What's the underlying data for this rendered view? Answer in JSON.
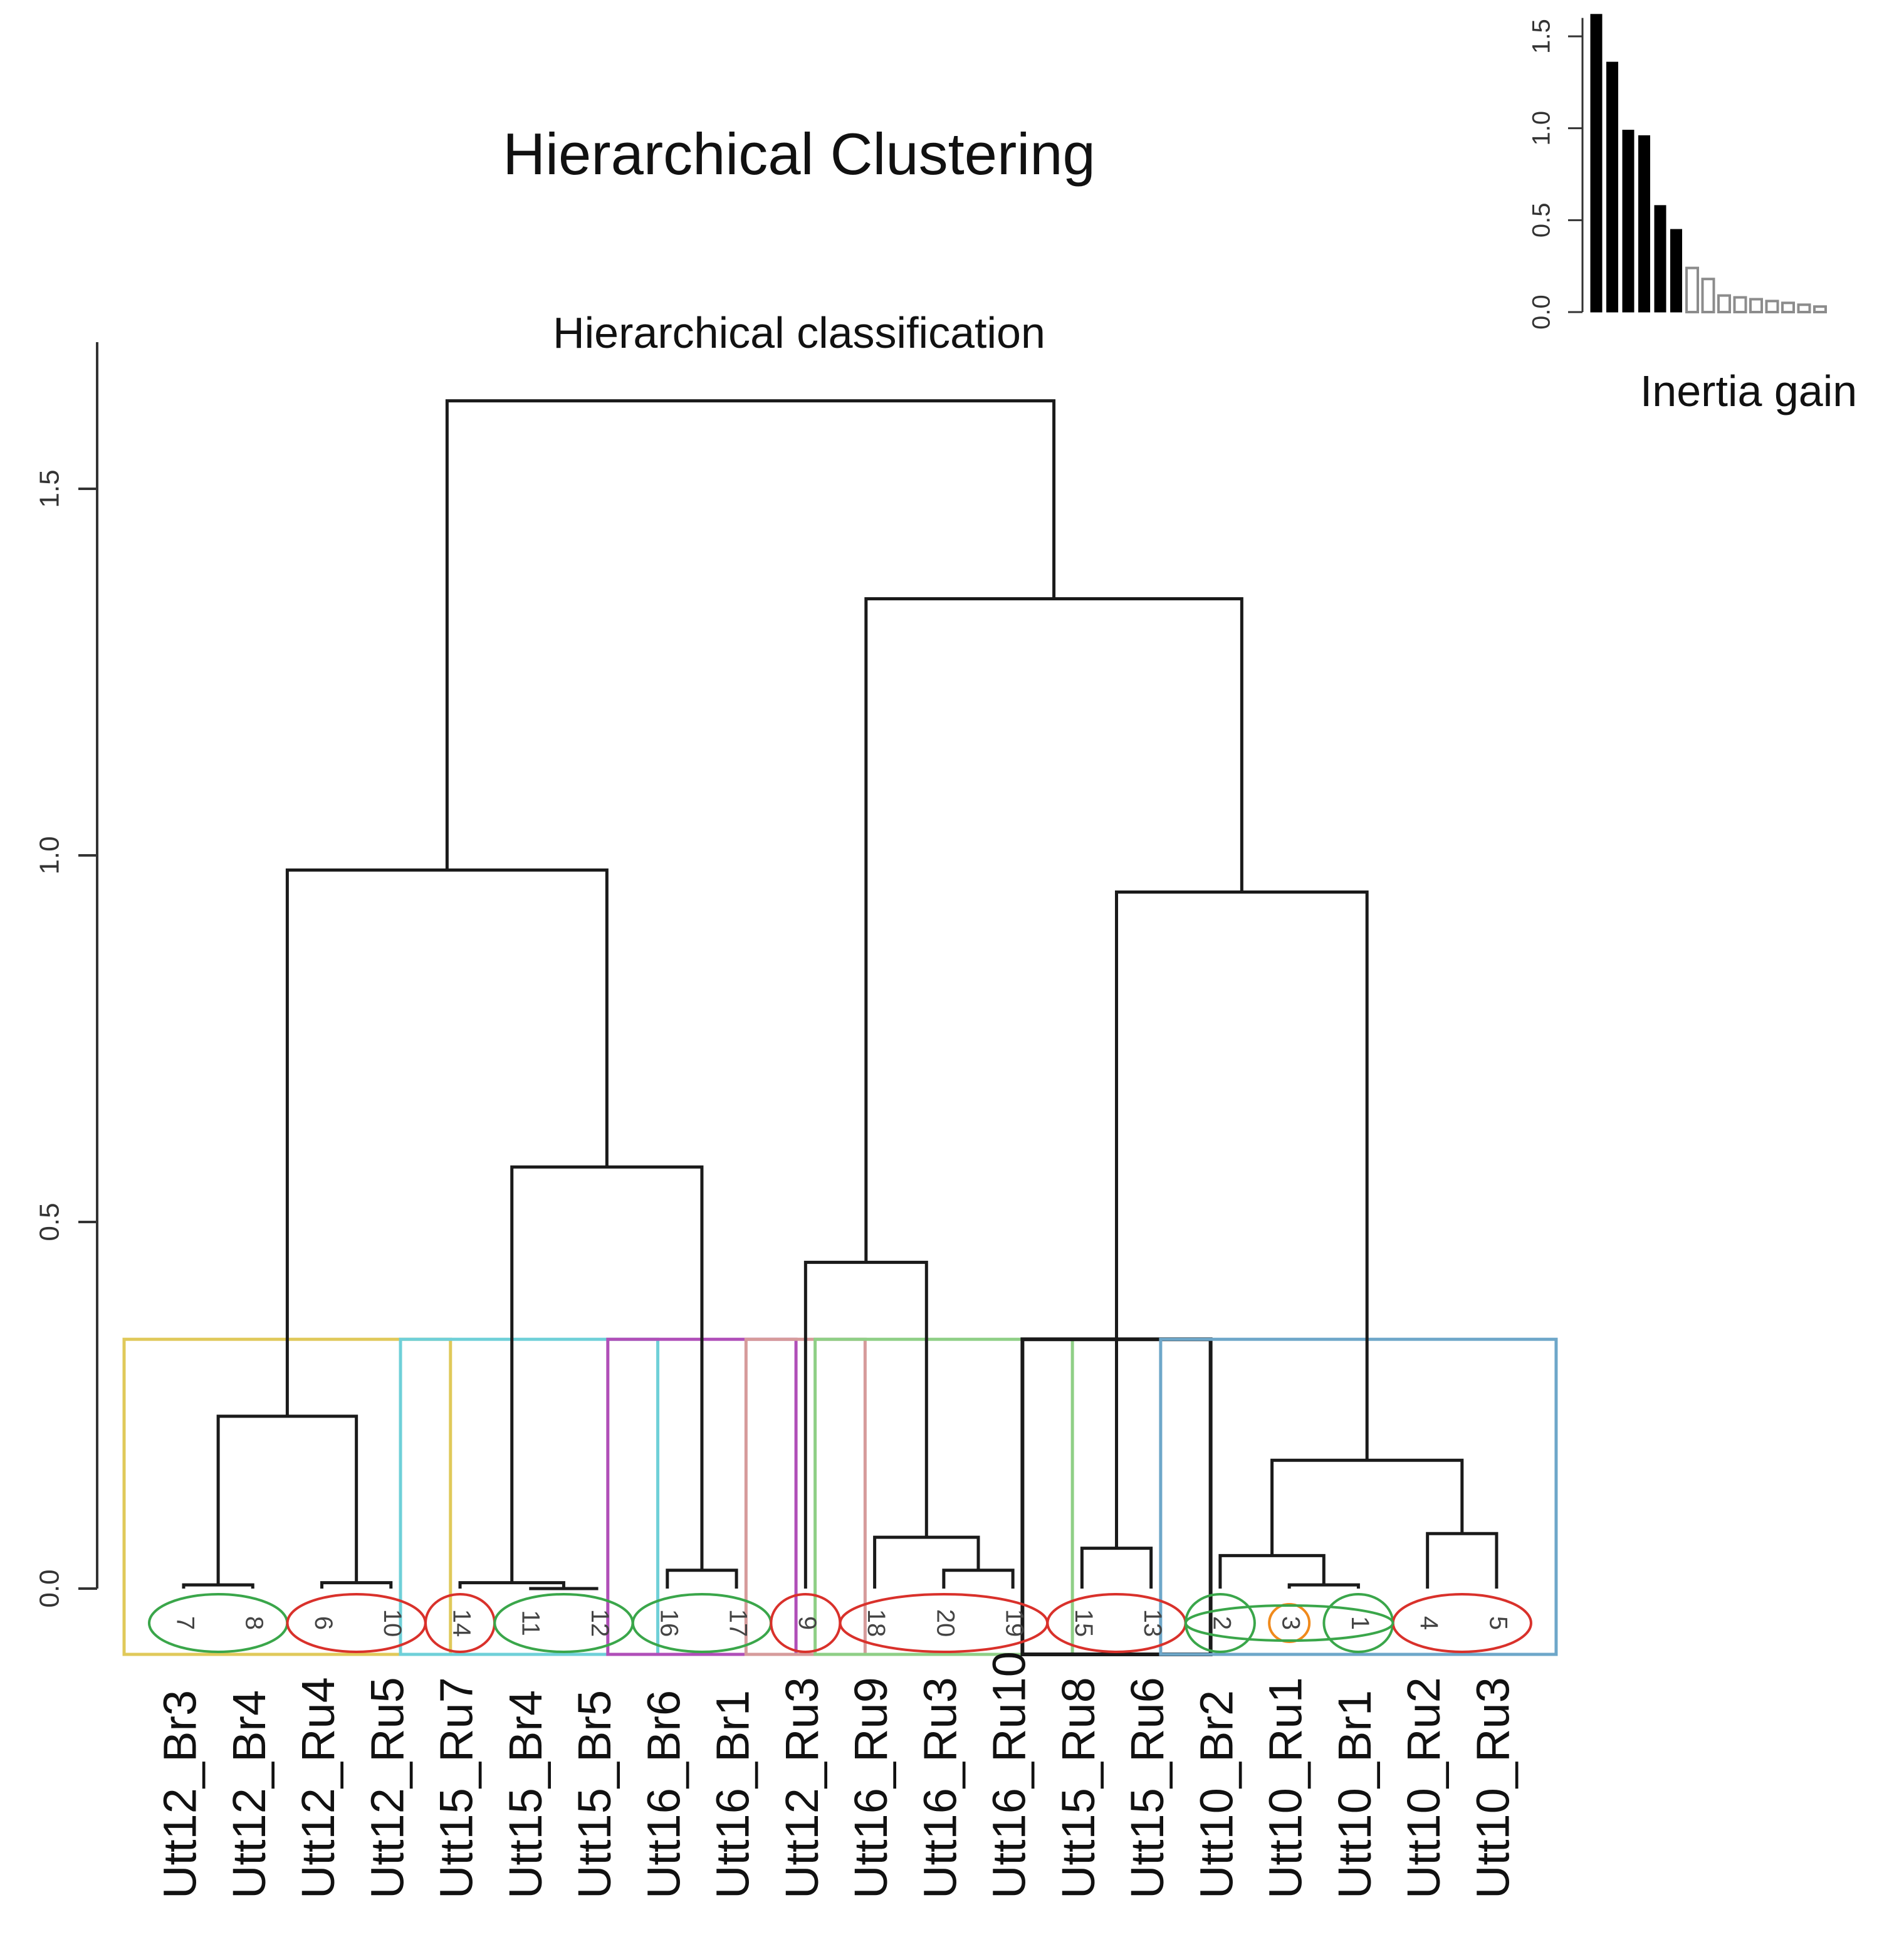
{
  "main_title": "Hierarchical Clustering",
  "colors": {
    "line": "#1a1a1a",
    "axis": "#333333",
    "bar_fill": "#000000",
    "bar_fill_light": "#8c8c8c",
    "ellipse_green": "#3aa64a",
    "ellipse_red": "#d9312b",
    "ellipse_orange": "#f08a1c"
  },
  "chart_data": [
    {
      "type": "dendrogram",
      "title": "Hierarchical classification",
      "ylabel": "",
      "ylim": [
        0,
        1.7
      ],
      "yticks": [
        0.0,
        0.5,
        1.0,
        1.5
      ],
      "ytick_labels": [
        "0.0",
        "0.5",
        "1.0",
        "1.5"
      ],
      "leaves": [
        {
          "label": "Utt12_Br3",
          "number": "7",
          "ellipse": "green"
        },
        {
          "label": "Utt12_Br4",
          "number": "8",
          "ellipse": "green"
        },
        {
          "label": "Utt12_Ru4",
          "number": "6",
          "ellipse": "red"
        },
        {
          "label": "Utt12_Ru5",
          "number": "10",
          "ellipse": "red"
        },
        {
          "label": "Utt15_Ru7",
          "number": "14",
          "ellipse": "red"
        },
        {
          "label": "Utt15_Br4",
          "number": "11",
          "ellipse": "green"
        },
        {
          "label": "Utt15_Br5",
          "number": "12",
          "ellipse": "green"
        },
        {
          "label": "Utt16_Br6",
          "number": "16",
          "ellipse": "green"
        },
        {
          "label": "Utt16_Br1",
          "number": "17",
          "ellipse": "green"
        },
        {
          "label": "Utt12_Ru3",
          "number": "9",
          "ellipse": "red"
        },
        {
          "label": "Utt16_Ru9",
          "number": "18",
          "ellipse": "red"
        },
        {
          "label": "Utt16_Ru3",
          "number": "20",
          "ellipse": "red"
        },
        {
          "label": "Utt16_Ru10",
          "number": "19",
          "ellipse": "red"
        },
        {
          "label": "Utt15_Ru8",
          "number": "15",
          "ellipse": "red"
        },
        {
          "label": "Utt15_Ru6",
          "number": "13",
          "ellipse": "red"
        },
        {
          "label": "Utt10_Br2",
          "number": "2",
          "ellipse": "green"
        },
        {
          "label": "Utt10_Ru1",
          "number": "3",
          "ellipse": "orange"
        },
        {
          "label": "Utt10_Br1",
          "number": "1",
          "ellipse": "green"
        },
        {
          "label": "Utt10_Ru2",
          "number": "4",
          "ellipse": "red"
        },
        {
          "label": "Utt10_Ru3",
          "number": "5",
          "ellipse": "red"
        }
      ],
      "merges": [
        {
          "id": "a",
          "children": [
            "L0",
            "L1"
          ],
          "height": 0.005
        },
        {
          "id": "b",
          "children": [
            "L2",
            "L3"
          ],
          "height": 0.008
        },
        {
          "id": "c",
          "children": [
            "a",
            "b"
          ],
          "height": 0.235
        },
        {
          "id": "d",
          "children": [
            "L5",
            "L6"
          ],
          "height": 0.0
        },
        {
          "id": "e",
          "children": [
            "L4",
            "d"
          ],
          "height": 0.008
        },
        {
          "id": "f",
          "children": [
            "L7",
            "L8"
          ],
          "height": 0.025
        },
        {
          "id": "g",
          "children": [
            "e",
            "f"
          ],
          "height": 0.575
        },
        {
          "id": "h",
          "children": [
            "c",
            "g"
          ],
          "height": 0.98
        },
        {
          "id": "i",
          "children": [
            "L11",
            "L12"
          ],
          "height": 0.025
        },
        {
          "id": "j",
          "children": [
            "L10",
            "i"
          ],
          "height": 0.07
        },
        {
          "id": "k",
          "children": [
            "L9",
            "j"
          ],
          "height": 0.445
        },
        {
          "id": "l",
          "children": [
            "L13",
            "L14"
          ],
          "height": 0.055
        },
        {
          "id": "m",
          "children": [
            "L16",
            "L17"
          ],
          "height": 0.005
        },
        {
          "id": "n",
          "children": [
            "L15",
            "m"
          ],
          "height": 0.045
        },
        {
          "id": "o",
          "children": [
            "L18",
            "L19"
          ],
          "height": 0.075
        },
        {
          "id": "p",
          "children": [
            "n",
            "o"
          ],
          "height": 0.175
        },
        {
          "id": "q",
          "children": [
            "l",
            "p"
          ],
          "height": 0.95
        },
        {
          "id": "r",
          "children": [
            "k",
            "q"
          ],
          "height": 1.35
        },
        {
          "id": "s",
          "children": [
            "h",
            "r"
          ],
          "height": 1.62
        }
      ],
      "cluster_boxes": [
        {
          "from": 0,
          "to": 3,
          "color": "#e0c95a"
        },
        {
          "from": 4,
          "to": 6,
          "color": "#6fd0d8"
        },
        {
          "from": 7,
          "to": 8,
          "color": "#b04fb8"
        },
        {
          "from": 9,
          "to": 9,
          "color": "#d69b9b"
        },
        {
          "from": 10,
          "to": 12,
          "color": "#8fcf86"
        },
        {
          "from": 13,
          "to": 14,
          "color": "#1a1a1a"
        },
        {
          "from": 15,
          "to": 19,
          "color": "#6ea7c9"
        }
      ],
      "cluster_box_height": 0.34
    },
    {
      "type": "bar",
      "title": "",
      "xlabel": "Inertia gain",
      "ylim": [
        0,
        1.6
      ],
      "yticks": [
        0.0,
        0.5,
        1.0,
        1.5
      ],
      "ytick_labels": [
        "0.0",
        "0.5",
        "1.0",
        "1.5"
      ],
      "values": [
        1.62,
        1.36,
        0.99,
        0.96,
        0.58,
        0.45,
        0.24,
        0.18,
        0.09,
        0.08,
        0.07,
        0.06,
        0.05,
        0.04,
        0.03
      ],
      "highlight_count": 6
    }
  ]
}
